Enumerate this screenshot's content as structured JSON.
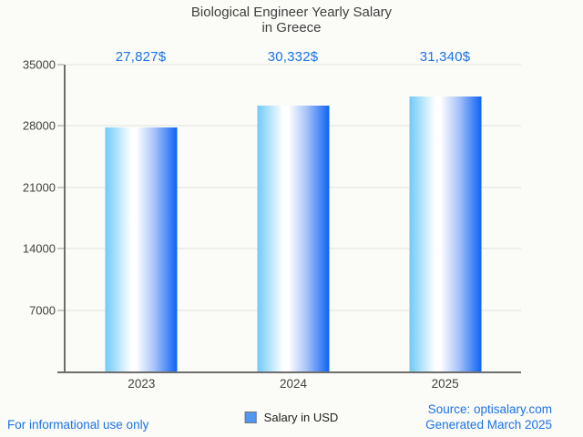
{
  "header": {
    "title_lines": [
      "Biological Engineer Yearly Salary",
      "in Greece"
    ]
  },
  "chart_data": {
    "type": "bar",
    "title": "Biological Engineer Yearly Salary in Greece",
    "categories": [
      "2023",
      "2024",
      "2025"
    ],
    "series": [
      {
        "name": "Salary in USD",
        "values": [
          27827,
          30332,
          31340
        ]
      }
    ],
    "value_labels": [
      "27,827$",
      "30,332$",
      "31,340$"
    ],
    "xlabel": "",
    "ylabel": "",
    "ylim": [
      0,
      35000
    ],
    "yticks": [
      7000,
      14000,
      21000,
      28000,
      35000
    ],
    "grid": "horizontal",
    "legend_position": "bottom"
  },
  "legend": {
    "label": "Salary in USD"
  },
  "footer": {
    "disclaimer": "For informational use only",
    "source": "Source: optisalary.com",
    "generated": "Generated March 2025"
  },
  "colors": {
    "accent_blue": "#1a73e8",
    "title_gray": "#3f3f3f",
    "axis_label_gray": "#424242",
    "axis_line_gray": "#6d6d6d",
    "gridline_gray": "#e2e2df",
    "background": "#fbfbf7",
    "legend_swatch": "#4f97f3",
    "bar_gradient": [
      "#6fcaf8",
      "#ffffff",
      "#a9c4fa",
      "#0d63f5"
    ]
  }
}
